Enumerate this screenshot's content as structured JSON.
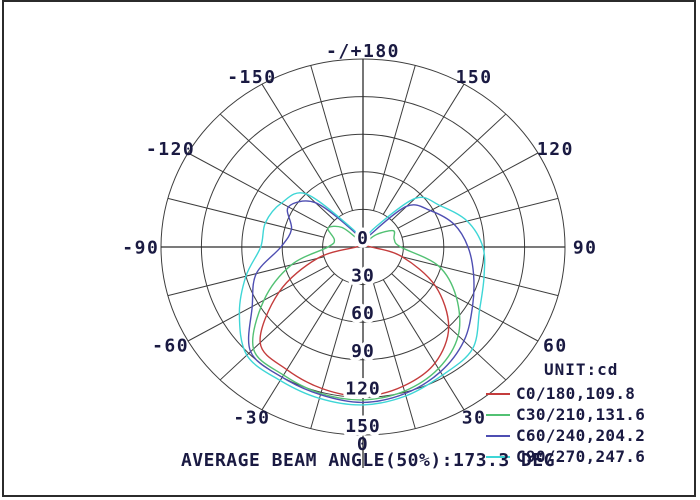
{
  "chart_data": {
    "type": "line",
    "coordinate_system": "polar",
    "description": "Luminous intensity distribution curves (photometric polar diagram)",
    "unit_label": "UNIT:cd",
    "footer": "AVERAGE BEAM ANGLE(50%):173.3 DEG",
    "average_beam_angle_50pct_deg": 173.3,
    "center_label": "0",
    "radial_axis": {
      "unit": "cd",
      "ticks": [
        30,
        60,
        90,
        120,
        150
      ],
      "max": 150
    },
    "angle_labels": [
      {
        "label": "-/+180",
        "deg": 180
      },
      {
        "label": "-150",
        "deg": -150
      },
      {
        "label": "150",
        "deg": 150
      },
      {
        "label": "-120",
        "deg": -120
      },
      {
        "label": "120",
        "deg": 120
      },
      {
        "label": "-90",
        "deg": -90
      },
      {
        "label": "90",
        "deg": 90
      },
      {
        "label": "-60",
        "deg": -60
      },
      {
        "label": "60",
        "deg": 60
      },
      {
        "label": "-30",
        "deg": -30
      },
      {
        "label": "30",
        "deg": 30
      },
      {
        "label": "0",
        "deg": 0
      }
    ],
    "gamma_start_deg": -180,
    "gamma_step_deg": 15,
    "series": [
      {
        "name": "C0/180,109.8",
        "plane": "C0/180",
        "beam_angle_deg": 109.8,
        "color": "#c43c3c",
        "values_cd": [
          0,
          1,
          1,
          1,
          2,
          3,
          5,
          35,
          72,
          108,
          113,
          117,
          119,
          115,
          107,
          90,
          62,
          30,
          6,
          2,
          1,
          1,
          1,
          1,
          0
        ]
      },
      {
        "name": "C30/210,131.6",
        "plane": "C30/210",
        "beam_angle_deg": 131.6,
        "color": "#52c173",
        "values_cd": [
          0,
          1,
          6,
          22,
          30,
          22,
          26,
          55,
          85,
          115,
          118,
          121,
          122,
          119,
          112,
          100,
          80,
          58,
          28,
          24,
          26,
          14,
          4,
          1,
          0
        ]
      },
      {
        "name": "C60/240,204.2",
        "plane": "C60/240",
        "beam_angle_deg": 204.2,
        "color": "#4e4eb2",
        "values_cd": [
          0,
          3,
          15,
          50,
          64,
          55,
          61,
          82,
          95,
          118,
          120,
          122,
          124,
          121,
          115,
          106,
          94,
          85,
          78,
          70,
          58,
          46,
          12,
          3,
          0
        ]
      },
      {
        "name": "C90/270,247.6",
        "plane": "C90/270",
        "beam_angle_deg": 247.6,
        "color": "#3ed6d6",
        "values_cd": [
          0,
          5,
          18,
          60,
          70,
          75,
          76,
          90,
          106,
          122,
          123,
          125,
          126,
          123,
          118,
          115,
          100,
          93,
          89,
          80,
          66,
          55,
          18,
          5,
          0
        ]
      }
    ],
    "grid": {
      "rings": 5,
      "spoke_step_deg": 15,
      "line_color": "#3d3d3d"
    }
  }
}
